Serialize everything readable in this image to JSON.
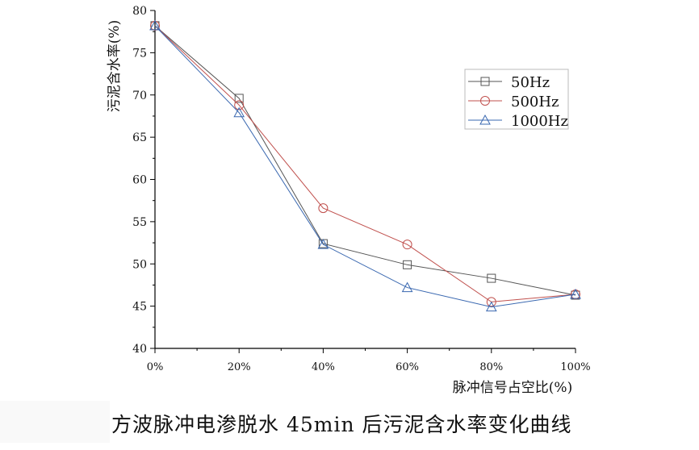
{
  "chart_data": {
    "type": "line",
    "title": "",
    "xlabel": "脉冲信号占空比(%)",
    "ylabel": "污泥含水率(%)",
    "x": [
      0,
      20,
      40,
      60,
      80,
      100
    ],
    "x_tick_labels": [
      "0%",
      "20%",
      "40%",
      "60%",
      "80%",
      "100%"
    ],
    "xlim": [
      0,
      100
    ],
    "ylim": [
      40,
      80
    ],
    "y_ticks": [
      40,
      45,
      50,
      55,
      60,
      65,
      70,
      75,
      80
    ],
    "grid": false,
    "legend_position": "top-right",
    "series": [
      {
        "name": "50Hz",
        "marker": "square",
        "color": "#555555",
        "values": [
          78.2,
          69.6,
          52.4,
          49.9,
          48.3,
          46.3
        ]
      },
      {
        "name": "500Hz",
        "marker": "circle",
        "color": "#c0504d",
        "values": [
          78.2,
          68.8,
          56.6,
          52.3,
          45.5,
          46.4
        ]
      },
      {
        "name": "1000Hz",
        "marker": "triangle",
        "color": "#3a68b0",
        "values": [
          78.2,
          67.9,
          52.3,
          47.2,
          44.9,
          46.4
        ]
      }
    ]
  },
  "caption": "方波脉冲电渗脱水 45min 后污泥含水率变化曲线"
}
